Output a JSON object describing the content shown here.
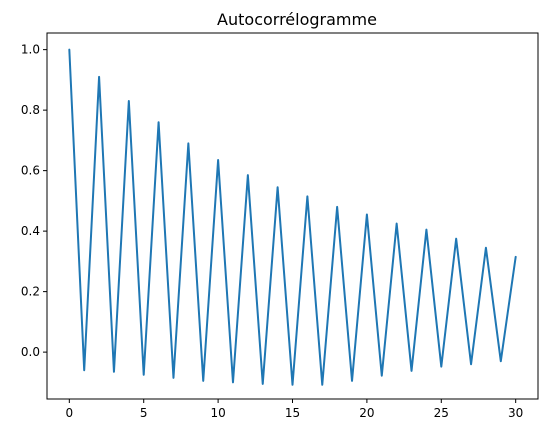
{
  "chart_data": {
    "type": "line",
    "title": "Autocorrélogramme",
    "xlabel": "",
    "ylabel": "",
    "xlim": [
      -1.5,
      31.5
    ],
    "ylim": [
      -0.155,
      1.055
    ],
    "grid": false,
    "x_ticks": [
      0,
      5,
      10,
      15,
      20,
      25,
      30
    ],
    "x_tick_labels": [
      "0",
      "5",
      "10",
      "15",
      "20",
      "25",
      "30"
    ],
    "y_ticks": [
      0.0,
      0.2,
      0.4,
      0.6,
      0.8,
      1.0
    ],
    "y_tick_labels": [
      "0.0",
      "0.2",
      "0.4",
      "0.6",
      "0.8",
      "1.0"
    ],
    "series": [
      {
        "color": "#1f77b4",
        "x": [
          0,
          1,
          2,
          3,
          4,
          5,
          6,
          7,
          8,
          9,
          10,
          11,
          12,
          13,
          14,
          15,
          16,
          17,
          18,
          19,
          20,
          21,
          22,
          23,
          24,
          25,
          26,
          27,
          28,
          29,
          30
        ],
        "y": [
          1.0,
          -0.06,
          0.91,
          -0.065,
          0.83,
          -0.075,
          0.76,
          -0.085,
          0.69,
          -0.095,
          0.635,
          -0.1,
          0.585,
          -0.105,
          0.545,
          -0.108,
          0.515,
          -0.108,
          0.48,
          -0.095,
          0.455,
          -0.078,
          0.425,
          -0.062,
          0.405,
          -0.048,
          0.375,
          -0.04,
          0.345,
          -0.03,
          0.315
        ]
      }
    ]
  }
}
